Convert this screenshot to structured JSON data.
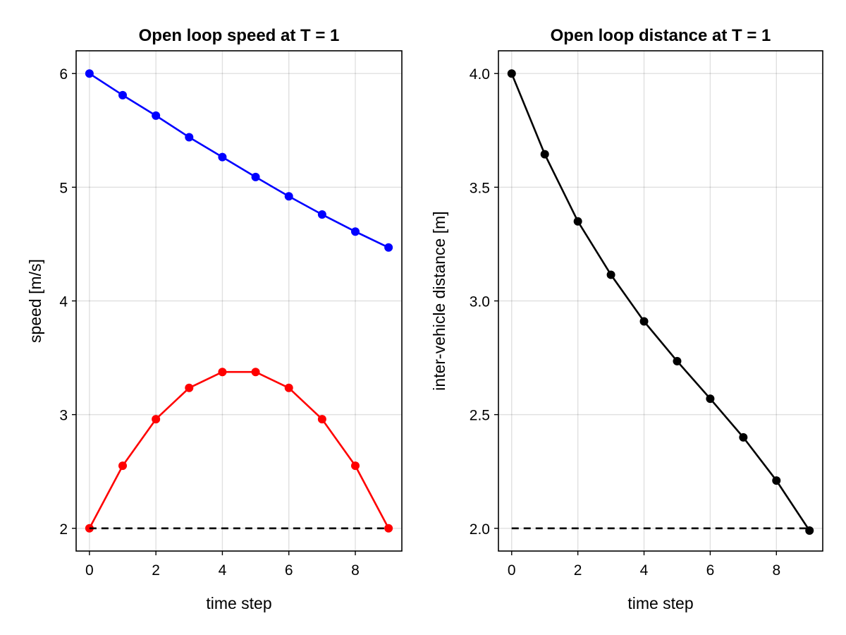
{
  "chart_data": [
    {
      "type": "line",
      "title": "Open loop speed at T = 1",
      "xlabel": "time step",
      "ylabel": "speed [m/s]",
      "xlim": [
        -0.4,
        9.4
      ],
      "ylim": [
        1.8,
        6.2
      ],
      "xticks": [
        0,
        2,
        4,
        6,
        8
      ],
      "xtick_labels": [
        "0",
        "2",
        "4",
        "6",
        "8"
      ],
      "yticks": [
        2,
        3,
        4,
        5,
        6
      ],
      "ytick_labels": [
        "2",
        "3",
        "4",
        "5",
        "6"
      ],
      "grid": true,
      "x": [
        0,
        1,
        2,
        3,
        4,
        5,
        6,
        7,
        8,
        9
      ],
      "series": [
        {
          "color": "#0000ff",
          "style": "solid",
          "markers": true,
          "values": [
            6.0,
            5.81,
            5.63,
            5.44,
            5.265,
            5.09,
            4.92,
            4.76,
            4.61,
            4.47
          ]
        },
        {
          "color": "#ff0000",
          "style": "solid",
          "markers": true,
          "values": [
            2.0,
            2.55,
            2.96,
            3.235,
            3.375,
            3.375,
            3.235,
            2.96,
            2.55,
            2.0
          ]
        },
        {
          "color": "#000000",
          "style": "dashed",
          "markers": false,
          "x": [
            0,
            9
          ],
          "values": [
            2.0,
            2.0
          ]
        }
      ]
    },
    {
      "type": "line",
      "title": "Open loop distance at T = 1",
      "xlabel": "time step",
      "ylabel": "inter-vehicle distance [m]",
      "xlim": [
        -0.4,
        9.4
      ],
      "ylim": [
        1.9,
        4.1
      ],
      "xticks": [
        0,
        2,
        4,
        6,
        8
      ],
      "xtick_labels": [
        "0",
        "2",
        "4",
        "6",
        "8"
      ],
      "yticks": [
        2.0,
        2.5,
        3.0,
        3.5,
        4.0
      ],
      "ytick_labels": [
        "2.0",
        "2.5",
        "3.0",
        "3.5",
        "4.0"
      ],
      "grid": true,
      "x": [
        0,
        1,
        2,
        3,
        4,
        5,
        6,
        7,
        8,
        9
      ],
      "series": [
        {
          "color": "#000000",
          "style": "solid",
          "markers": true,
          "values": [
            4.0,
            3.645,
            3.35,
            3.115,
            2.91,
            2.735,
            2.57,
            2.4,
            2.21,
            1.99
          ]
        },
        {
          "color": "#000000",
          "style": "dashed",
          "markers": false,
          "x": [
            0,
            9
          ],
          "values": [
            2.0,
            2.0
          ]
        }
      ]
    }
  ]
}
